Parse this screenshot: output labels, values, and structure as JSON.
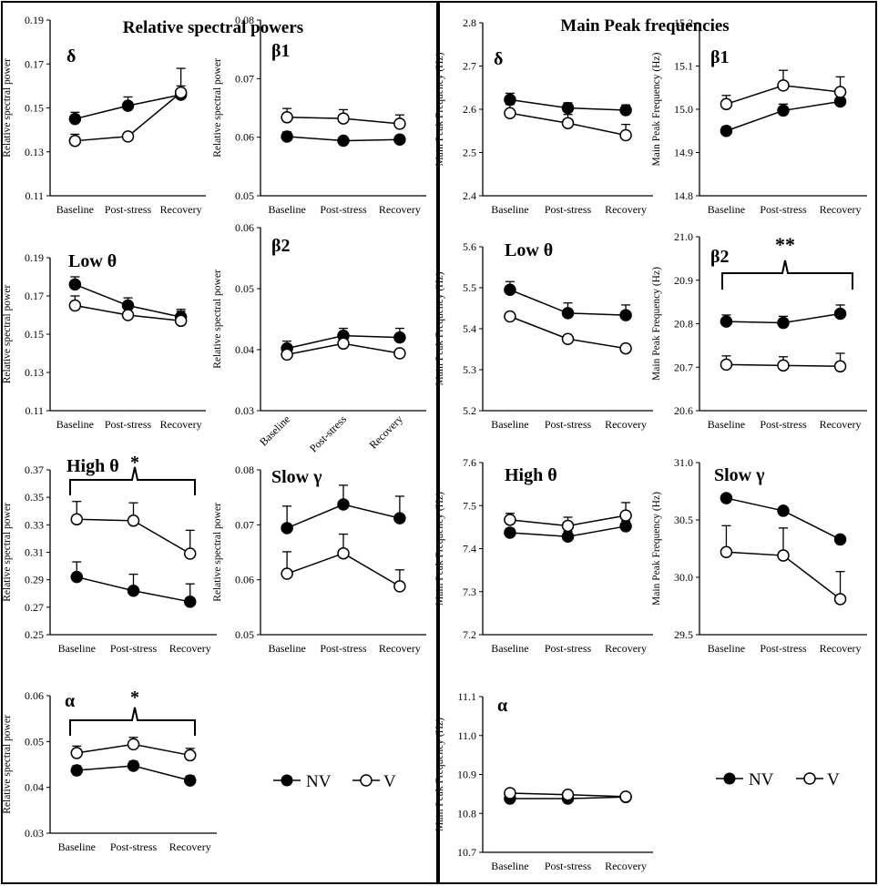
{
  "panel_titles": {
    "left": "Relative spectral powers",
    "right": "Main Peak frequencies"
  },
  "legend": {
    "nv": "NV",
    "v": "V"
  },
  "colors": {
    "nv_fill": "#000000",
    "v_fill": "#ffffff",
    "stroke": "#000000"
  },
  "chart_data": [
    {
      "id": "rsp-delta",
      "type": "line",
      "band_label": "δ",
      "ylabel": "Relative spectral power",
      "categories": [
        "Baseline",
        "Post-stress",
        "Recovery"
      ],
      "ylim": [
        0.11,
        0.19
      ],
      "yticks": [
        "0.11",
        "0.13",
        "0.15",
        "0.17",
        "0.19"
      ],
      "series": [
        {
          "name": "NV",
          "values": [
            0.145,
            0.151,
            0.156
          ],
          "errors": [
            0.003,
            0.004,
            0.004
          ]
        },
        {
          "name": "V",
          "values": [
            0.135,
            0.137,
            0.157
          ],
          "errors": [
            0.003,
            0.0,
            0.011
          ]
        }
      ]
    },
    {
      "id": "rsp-beta1",
      "type": "line",
      "band_label": "β1",
      "ylabel": "Relative spectral power",
      "categories": [
        "Baseline",
        "Post-stress",
        "Recovery"
      ],
      "ylim": [
        0.05,
        0.08
      ],
      "yticks": [
        "0.05",
        "0.06",
        "0.07",
        "0.08"
      ],
      "series": [
        {
          "name": "NV",
          "values": [
            0.0601,
            0.0594,
            0.0596
          ],
          "errors": [
            0.0008,
            0.0,
            0.0
          ]
        },
        {
          "name": "V",
          "values": [
            0.0634,
            0.0632,
            0.0623
          ],
          "errors": [
            0.0015,
            0.0015,
            0.0015
          ]
        }
      ]
    },
    {
      "id": "rsp-low-theta",
      "type": "line",
      "band_label": "Low θ",
      "ylabel": "Relative spectral power",
      "categories": [
        "Baseline",
        "Post-stress",
        "Recovery"
      ],
      "ylim": [
        0.11,
        0.19
      ],
      "yticks": [
        "0.11",
        "0.13",
        "0.15",
        "0.17",
        "0.19"
      ],
      "series": [
        {
          "name": "NV",
          "values": [
            0.176,
            0.165,
            0.159
          ],
          "errors": [
            0.004,
            0.004,
            0.004
          ]
        },
        {
          "name": "V",
          "values": [
            0.165,
            0.16,
            0.157
          ],
          "errors": [
            0.005,
            0.005,
            0.005
          ]
        }
      ]
    },
    {
      "id": "rsp-beta2",
      "type": "line",
      "band_label": "β2",
      "ylabel": "Relative spectral power",
      "categories": [
        "Baseline",
        "Post-stress",
        "Recovery"
      ],
      "ylim": [
        0.03,
        0.06
      ],
      "yticks": [
        "0.03",
        "0.04",
        "0.05",
        "0.06"
      ],
      "series": [
        {
          "name": "NV",
          "values": [
            0.0402,
            0.0423,
            0.042
          ],
          "errors": [
            0.0012,
            0.0012,
            0.0015
          ]
        },
        {
          "name": "V",
          "values": [
            0.0392,
            0.041,
            0.0394
          ],
          "errors": [
            0.0,
            0.0,
            0.0
          ]
        }
      ]
    },
    {
      "id": "rsp-high-theta",
      "type": "line",
      "band_label": "High θ",
      "ylabel": "Relative spectral power",
      "categories": [
        "Baseline",
        "Post-stress",
        "Recovery"
      ],
      "ylim": [
        0.25,
        0.37
      ],
      "yticks": [
        "0.25",
        "0.27",
        "0.29",
        "0.31",
        "0.33",
        "0.35",
        "0.37"
      ],
      "significance": "*",
      "series": [
        {
          "name": "NV",
          "values": [
            0.292,
            0.282,
            0.274
          ],
          "errors": [
            0.011,
            0.012,
            0.013
          ]
        },
        {
          "name": "V",
          "values": [
            0.334,
            0.333,
            0.309
          ],
          "errors": [
            0.013,
            0.013,
            0.017
          ]
        }
      ]
    },
    {
      "id": "rsp-slow-gamma",
      "type": "line",
      "band_label": "Slow γ",
      "ylabel": "Relative spectral power",
      "categories": [
        "Baseline",
        "Post-stress",
        "Recovery"
      ],
      "ylim": [
        0.05,
        0.08
      ],
      "yticks": [
        "0.05",
        "0.06",
        "0.07",
        "0.08"
      ],
      "series": [
        {
          "name": "NV",
          "values": [
            0.0694,
            0.0737,
            0.0712
          ],
          "errors": [
            0.004,
            0.0035,
            0.004
          ]
        },
        {
          "name": "V",
          "values": [
            0.0611,
            0.0648,
            0.0588
          ],
          "errors": [
            0.004,
            0.0035,
            0.003
          ]
        }
      ]
    },
    {
      "id": "rsp-alpha",
      "type": "line",
      "band_label": "α",
      "ylabel": "Relative spectral power",
      "categories": [
        "Baseline",
        "Post-stress",
        "Recovery"
      ],
      "ylim": [
        0.03,
        0.06
      ],
      "yticks": [
        "0.03",
        "0.04",
        "0.05",
        "0.06"
      ],
      "significance": "*",
      "series": [
        {
          "name": "NV",
          "values": [
            0.0437,
            0.0447,
            0.0415
          ],
          "errors": [
            0.001,
            0.001,
            0.001
          ]
        },
        {
          "name": "V",
          "values": [
            0.0475,
            0.0494,
            0.047
          ],
          "errors": [
            0.0015,
            0.0015,
            0.0015
          ]
        }
      ]
    },
    {
      "id": "mpf-delta",
      "type": "line",
      "band_label": "δ",
      "ylabel": "Main Peak Frequency (Hz)",
      "categories": [
        "Baseline",
        "Post-stress",
        "Recovery"
      ],
      "ylim": [
        2.4,
        2.8
      ],
      "yticks": [
        "2.4",
        "2.5",
        "2.6",
        "2.7",
        "2.8"
      ],
      "series": [
        {
          "name": "NV",
          "values": [
            2.622,
            2.603,
            2.598
          ],
          "errors": [
            0.015,
            0.012,
            0.012
          ]
        },
        {
          "name": "V",
          "values": [
            2.591,
            2.568,
            2.54
          ],
          "errors": [
            0.02,
            0.02,
            0.025
          ]
        }
      ]
    },
    {
      "id": "mpf-beta1",
      "type": "line",
      "band_label": "β1",
      "ylabel": "Main Peak Frequency (Hz)",
      "categories": [
        "Baseline",
        "Post-stress",
        "Recovery"
      ],
      "ylim": [
        14.8,
        15.2
      ],
      "yticks": [
        "14.8",
        "14.9",
        "15.0",
        "15.1",
        "15.2"
      ],
      "series": [
        {
          "name": "NV",
          "values": [
            14.95,
            14.997,
            15.018
          ],
          "errors": [
            0.01,
            0.015,
            0.0
          ]
        },
        {
          "name": "V",
          "values": [
            15.012,
            15.055,
            15.04
          ],
          "errors": [
            0.02,
            0.035,
            0.035
          ]
        }
      ]
    },
    {
      "id": "mpf-low-theta",
      "type": "line",
      "band_label": "Low θ",
      "ylabel": "Main Peak Frequency (Hz)",
      "categories": [
        "Baseline",
        "Post-stress",
        "Recovery"
      ],
      "ylim": [
        5.2,
        5.6
      ],
      "yticks": [
        "5.2",
        "5.3",
        "5.4",
        "5.5",
        "5.6"
      ],
      "series": [
        {
          "name": "NV",
          "values": [
            5.495,
            5.438,
            5.433
          ],
          "errors": [
            0.02,
            0.025,
            0.025
          ]
        },
        {
          "name": "V",
          "values": [
            5.43,
            5.375,
            5.352
          ],
          "errors": [
            0.0,
            0.0,
            0.0
          ]
        }
      ]
    },
    {
      "id": "mpf-beta2",
      "type": "line",
      "band_label": "β2",
      "ylabel": "Main Peak Frequency (Hz)",
      "categories": [
        "Baseline",
        "Post-stress",
        "Recovery"
      ],
      "ylim": [
        20.6,
        21.0
      ],
      "yticks": [
        "20.6",
        "20.7",
        "20.8",
        "20.9",
        "21.0"
      ],
      "significance": "**",
      "series": [
        {
          "name": "NV",
          "values": [
            20.805,
            20.802,
            20.823
          ],
          "errors": [
            0.015,
            0.015,
            0.02
          ]
        },
        {
          "name": "V",
          "values": [
            20.706,
            20.704,
            20.702
          ],
          "errors": [
            0.02,
            0.02,
            0.03
          ]
        }
      ]
    },
    {
      "id": "mpf-high-theta",
      "type": "line",
      "band_label": "High θ",
      "ylabel": "Main Peak Frequency (Hz)",
      "categories": [
        "Baseline",
        "Post-stress",
        "Recovery"
      ],
      "ylim": [
        7.2,
        7.6
      ],
      "yticks": [
        "7.2",
        "7.3",
        "7.4",
        "7.5",
        "7.6"
      ],
      "series": [
        {
          "name": "NV",
          "values": [
            7.437,
            7.428,
            7.452
          ],
          "errors": [
            0.01,
            0.012,
            0.012
          ]
        },
        {
          "name": "V",
          "values": [
            7.467,
            7.453,
            7.477
          ],
          "errors": [
            0.015,
            0.02,
            0.03
          ]
        }
      ]
    },
    {
      "id": "mpf-slow-gamma",
      "type": "line",
      "band_label": "Slow γ",
      "ylabel": "Main Peak Frequency (Hz)",
      "categories": [
        "Baseline",
        "Post-stress",
        "Recovery"
      ],
      "ylim": [
        29.5,
        31.0
      ],
      "yticks": [
        "29.5",
        "30.0",
        "30.5",
        "31.0"
      ],
      "series": [
        {
          "name": "NV",
          "values": [
            30.69,
            30.58,
            30.33
          ],
          "errors": [
            0.0,
            0.0,
            0.0
          ]
        },
        {
          "name": "V",
          "values": [
            30.22,
            30.19,
            29.81
          ],
          "errors": [
            0.23,
            0.24,
            0.24
          ]
        }
      ]
    },
    {
      "id": "mpf-alpha",
      "type": "line",
      "band_label": "α",
      "ylabel": "Main Peak Frequency (Hz)",
      "categories": [
        "Baseline",
        "Post-stress",
        "Recovery"
      ],
      "ylim": [
        10.7,
        11.1
      ],
      "yticks": [
        "10.7",
        "10.8",
        "10.9",
        "11.0",
        "11.1"
      ],
      "series": [
        {
          "name": "NV",
          "values": [
            10.838,
            10.838,
            10.842
          ],
          "errors": [
            0.0,
            0.0,
            0.0
          ]
        },
        {
          "name": "V",
          "values": [
            10.852,
            10.848,
            10.843
          ],
          "errors": [
            0.0,
            0.0,
            0.0
          ]
        }
      ]
    }
  ]
}
